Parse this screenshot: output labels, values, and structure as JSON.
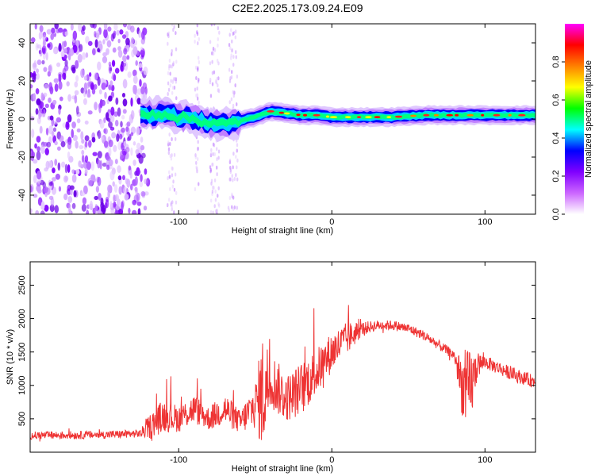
{
  "title": "C2E2.2025.173.09.24.E09",
  "chart_data": [
    {
      "type": "heatmap",
      "xlabel": "Height of straight line (km)",
      "ylabel": "Frequency (Hz)",
      "xlim": [
        -197,
        133
      ],
      "ylim": [
        -50,
        50
      ],
      "xticks": [
        -100,
        0,
        100
      ],
      "yticks": [
        -40,
        -20,
        0,
        20,
        40
      ],
      "xtick_labels": [
        "-100",
        "0",
        "100"
      ],
      "ytick_labels": [
        "-40",
        "-20",
        "0",
        "20",
        "40"
      ],
      "grid": false,
      "colorbar": {
        "label": "Normalized spectral amplitude",
        "range": [
          0,
          1
        ],
        "ticks": [
          "0.0",
          "0.2",
          "0.4",
          "0.6",
          "0.8"
        ],
        "tick_values": [
          0.0,
          0.2,
          0.4,
          0.6,
          0.8
        ],
        "colormap": [
          "#ffffff",
          "#cc66ff",
          "#8000ff",
          "#0000ff",
          "#00ffff",
          "#00ff00",
          "#ffff00",
          "#ff8000",
          "#ff0000",
          "#ff00ff"
        ]
      },
      "ridge": {
        "x": [
          -125,
          -110,
          -100,
          -90,
          -80,
          -70,
          -60,
          -50,
          -40,
          -30,
          -20,
          -10,
          0,
          20,
          40,
          60,
          80,
          100,
          133
        ],
        "y": [
          2,
          3,
          1,
          0,
          -2,
          -3,
          -1,
          1,
          4,
          3,
          2,
          2,
          1,
          1,
          1,
          2,
          2,
          2,
          2
        ]
      },
      "noise_region_xlim": [
        -197,
        -120
      ]
    },
    {
      "type": "line",
      "xlabel": "Height of straight line (km)",
      "ylabel": "SNR (10 * v/v)",
      "xlim": [
        -197,
        133
      ],
      "ylim": [
        0,
        2850
      ],
      "xticks": [
        -100,
        0,
        100
      ],
      "yticks": [
        500,
        1000,
        1500,
        2000,
        2500
      ],
      "xtick_labels": [
        "-100",
        "0",
        "100"
      ],
      "ytick_labels": [
        "500",
        "1000",
        "1500",
        "2000",
        "2500"
      ],
      "grid": false,
      "line_color": "#ee3333",
      "envelope": {
        "x": [
          -197,
          -150,
          -125,
          -118,
          -110,
          -100,
          -90,
          -80,
          -70,
          -60,
          -50,
          -45,
          -40,
          -30,
          -20,
          -10,
          0,
          10,
          20,
          30,
          40,
          50,
          60,
          70,
          80,
          85,
          90,
          95,
          100,
          110,
          120,
          133
        ],
        "mean": [
          250,
          260,
          280,
          400,
          550,
          500,
          650,
          500,
          650,
          450,
          700,
          900,
          1100,
          800,
          950,
          1200,
          1500,
          1700,
          1850,
          1900,
          1900,
          1850,
          1750,
          1600,
          1450,
          1000,
          900,
          1300,
          1350,
          1250,
          1150,
          1050
        ],
        "spread": [
          120,
          120,
          120,
          400,
          500,
          400,
          450,
          350,
          500,
          350,
          700,
          1800,
          900,
          700,
          800,
          700,
          600,
          500,
          200,
          150,
          150,
          150,
          150,
          150,
          150,
          900,
          1300,
          400,
          200,
          200,
          200,
          200
        ]
      }
    }
  ]
}
